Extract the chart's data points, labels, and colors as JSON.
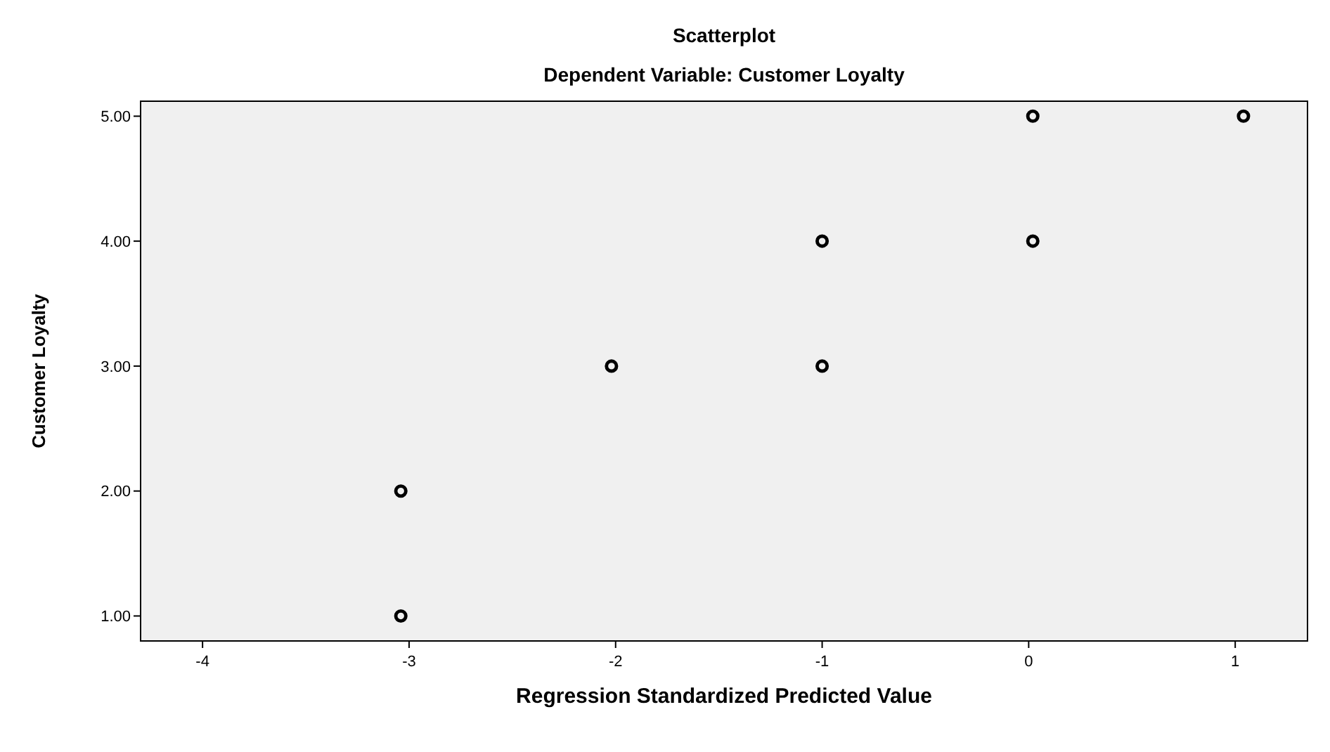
{
  "chart_data": {
    "type": "scatter",
    "title": "Scatterplot",
    "subtitle": "Dependent Variable: Customer Loyalty",
    "xlabel": "Regression Standardized Predicted Value",
    "ylabel": "Customer Loyalty",
    "x": [
      -3.04,
      -3.04,
      -2.02,
      -1.0,
      -1.0,
      0.02,
      0.02,
      1.04
    ],
    "series": [
      {
        "color": "#000000",
        "values": [
          1,
          2,
          3,
          3,
          4,
          4,
          5,
          5
        ]
      }
    ],
    "xlim": [
      -4.3,
      1.35
    ],
    "xticks": [
      -4,
      -3,
      -2,
      -1,
      0,
      1
    ],
    "ylim": [
      0.8,
      5.12
    ],
    "yticks": [
      {
        "value": 1,
        "label": "1.00"
      },
      {
        "value": 2,
        "label": "2.00"
      },
      {
        "value": 3,
        "label": "3.00"
      },
      {
        "value": 4,
        "label": "4.00"
      },
      {
        "value": 5,
        "label": "5.00"
      }
    ],
    "grid": false,
    "marker": "circle"
  }
}
